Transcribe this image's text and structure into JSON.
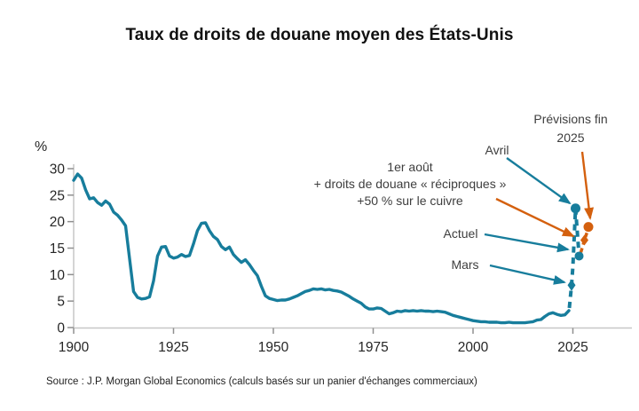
{
  "title": "Taux de droits de douane moyen des États-Unis",
  "source": "Source : J.P. Morgan Global Economics (calculs basés sur un panier d'échanges commerciaux)",
  "colors": {
    "teal": "#177d9c",
    "orange": "#d4600e",
    "annotation_text": "#3e3e3e",
    "axis_line": "#c7c7c7",
    "tick_mark": "#909090",
    "tick_label": "#262626",
    "title_text": "#111111"
  },
  "chart_data": {
    "type": "line",
    "title": "Taux de droits de douane moyen des États-Unis",
    "ylabel": "%",
    "xlabel": "",
    "xlim": [
      1900,
      2025
    ],
    "ylim": [
      0,
      30
    ],
    "x_ticks": [
      1900,
      1925,
      1950,
      1975,
      2000,
      2025
    ],
    "y_ticks": [
      0,
      5,
      10,
      15,
      20,
      25,
      30
    ],
    "grid": false,
    "legend": "none",
    "series": [
      {
        "name": "Taux de droits de douane moyen (solide, historique)",
        "color": "teal",
        "points": [
          [
            1900,
            27.8
          ],
          [
            1901,
            29.0
          ],
          [
            1902,
            28.2
          ],
          [
            1903,
            26.0
          ],
          [
            1904,
            24.3
          ],
          [
            1905,
            24.5
          ],
          [
            1906,
            23.6
          ],
          [
            1907,
            23.1
          ],
          [
            1908,
            23.9
          ],
          [
            1909,
            23.3
          ],
          [
            1910,
            21.8
          ],
          [
            1911,
            21.2
          ],
          [
            1912,
            20.3
          ],
          [
            1913,
            19.2
          ],
          [
            1914,
            13.0
          ],
          [
            1915,
            6.8
          ],
          [
            1916,
            5.7
          ],
          [
            1917,
            5.4
          ],
          [
            1918,
            5.5
          ],
          [
            1919,
            5.8
          ],
          [
            1920,
            8.8
          ],
          [
            1921,
            13.5
          ],
          [
            1922,
            15.2
          ],
          [
            1923,
            15.3
          ],
          [
            1924,
            13.5
          ],
          [
            1925,
            13.1
          ],
          [
            1926,
            13.3
          ],
          [
            1927,
            13.8
          ],
          [
            1928,
            13.4
          ],
          [
            1929,
            13.6
          ],
          [
            1930,
            15.8
          ],
          [
            1931,
            18.3
          ],
          [
            1932,
            19.7
          ],
          [
            1933,
            19.8
          ],
          [
            1934,
            18.3
          ],
          [
            1935,
            17.2
          ],
          [
            1936,
            16.6
          ],
          [
            1937,
            15.3
          ],
          [
            1938,
            14.7
          ],
          [
            1939,
            15.2
          ],
          [
            1940,
            13.8
          ],
          [
            1941,
            13.0
          ],
          [
            1942,
            12.3
          ],
          [
            1943,
            12.8
          ],
          [
            1944,
            11.9
          ],
          [
            1945,
            10.8
          ],
          [
            1946,
            9.8
          ],
          [
            1947,
            7.8
          ],
          [
            1948,
            6.0
          ],
          [
            1949,
            5.5
          ],
          [
            1950,
            5.3
          ],
          [
            1951,
            5.1
          ],
          [
            1952,
            5.2
          ],
          [
            1953,
            5.2
          ],
          [
            1954,
            5.4
          ],
          [
            1955,
            5.7
          ],
          [
            1956,
            6.0
          ],
          [
            1957,
            6.4
          ],
          [
            1958,
            6.8
          ],
          [
            1959,
            7.0
          ],
          [
            1960,
            7.3
          ],
          [
            1961,
            7.2
          ],
          [
            1962,
            7.3
          ],
          [
            1963,
            7.1
          ],
          [
            1964,
            7.2
          ],
          [
            1965,
            7.0
          ],
          [
            1966,
            6.9
          ],
          [
            1967,
            6.7
          ],
          [
            1968,
            6.3
          ],
          [
            1969,
            5.9
          ],
          [
            1970,
            5.4
          ],
          [
            1971,
            5.0
          ],
          [
            1972,
            4.6
          ],
          [
            1973,
            3.9
          ],
          [
            1974,
            3.5
          ],
          [
            1975,
            3.5
          ],
          [
            1976,
            3.7
          ],
          [
            1977,
            3.6
          ],
          [
            1978,
            3.1
          ],
          [
            1979,
            2.6
          ],
          [
            1980,
            2.8
          ],
          [
            1981,
            3.1
          ],
          [
            1982,
            3.0
          ],
          [
            1983,
            3.2
          ],
          [
            1984,
            3.1
          ],
          [
            1985,
            3.2
          ],
          [
            1986,
            3.1
          ],
          [
            1987,
            3.2
          ],
          [
            1988,
            3.1
          ],
          [
            1989,
            3.1
          ],
          [
            1990,
            3.0
          ],
          [
            1991,
            3.1
          ],
          [
            1992,
            3.0
          ],
          [
            1993,
            2.9
          ],
          [
            1994,
            2.6
          ],
          [
            1995,
            2.3
          ],
          [
            1996,
            2.1
          ],
          [
            1997,
            1.9
          ],
          [
            1998,
            1.7
          ],
          [
            1999,
            1.5
          ],
          [
            2000,
            1.3
          ],
          [
            2001,
            1.2
          ],
          [
            2002,
            1.1
          ],
          [
            2003,
            1.1
          ],
          [
            2004,
            1.0
          ],
          [
            2005,
            1.0
          ],
          [
            2006,
            1.0
          ],
          [
            2007,
            0.9
          ],
          [
            2008,
            0.9
          ],
          [
            2009,
            1.0
          ],
          [
            2010,
            0.9
          ],
          [
            2011,
            0.9
          ],
          [
            2012,
            0.9
          ],
          [
            2013,
            0.9
          ],
          [
            2014,
            1.0
          ],
          [
            2015,
            1.1
          ],
          [
            2016,
            1.4
          ],
          [
            2017,
            1.5
          ],
          [
            2018,
            2.1
          ],
          [
            2019,
            2.6
          ],
          [
            2020,
            2.8
          ],
          [
            2021,
            2.5
          ],
          [
            2022,
            2.3
          ],
          [
            2023,
            2.4
          ],
          [
            2024,
            3.2
          ]
        ]
      }
    ],
    "events_2025": [
      {
        "id": "mars",
        "label": "Mars",
        "value_pct": 8,
        "marker": "diamond",
        "color": "teal"
      },
      {
        "id": "avril",
        "label": "Avril",
        "value_pct": 22.5,
        "marker": "circle",
        "color": "teal"
      },
      {
        "id": "actuel",
        "label": "Actuel",
        "value_pct": 13.5,
        "marker": "circle",
        "color": "teal"
      },
      {
        "id": "aout",
        "label": "1er août + droits de douane « réciproques » +50 % sur le cuivre",
        "value_pct": 16.5,
        "marker": "diamond",
        "color": "orange"
      },
      {
        "id": "fin2025",
        "label": "Prévisions fin 2025",
        "value_pct": 19,
        "marker": "circle",
        "color": "orange"
      }
    ],
    "projection_note": "ligne pointillée = évolution/prévision 2025"
  },
  "annotations": [
    {
      "id": "previsions",
      "lines": [
        "Prévisions fin",
        "2025"
      ],
      "arrow_color": "orange"
    },
    {
      "id": "avril",
      "lines": [
        "Avril"
      ],
      "arrow_color": "teal"
    },
    {
      "id": "aout",
      "lines": [
        "1er août",
        "+ droits de douane « réciproques »",
        "+50 % sur le cuivre"
      ],
      "arrow_color": "orange"
    },
    {
      "id": "actuel",
      "lines": [
        "Actuel"
      ],
      "arrow_color": "teal"
    },
    {
      "id": "mars",
      "lines": [
        "Mars"
      ],
      "arrow_color": "teal"
    }
  ]
}
